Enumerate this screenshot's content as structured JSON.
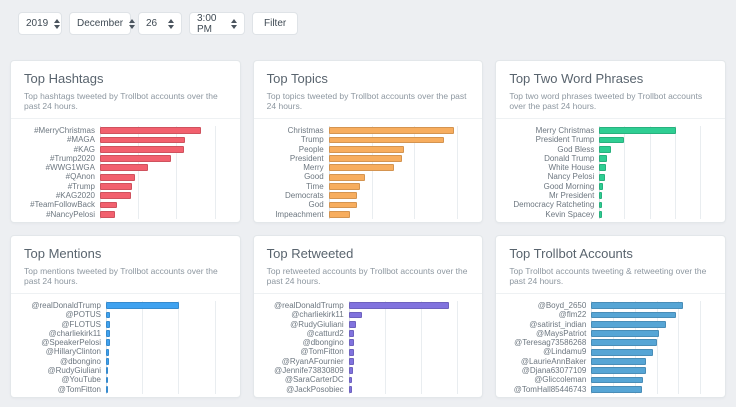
{
  "filter_bar": {
    "year": "2019",
    "month": "December",
    "day": "26",
    "time": "3:00 PM",
    "filter_label": "Filter"
  },
  "chart_data": [
    {
      "type": "bar",
      "title": "Top Hashtags",
      "subtitle": "Top hashtags tweeted by Trollbot accounts over the past 24 hours.",
      "orientation": "horizontal",
      "color": "#f2606e",
      "label_width": 76,
      "categories": [
        "#MerryChristmas",
        "#MAGA",
        "#KAG",
        "#Trump2020",
        "#WWG1WGA",
        "#QAnon",
        "#Trump",
        "#KAG2020",
        "#TeamFollowBack",
        "#NancyPelosi"
      ],
      "values": [
        530,
        445,
        440,
        370,
        250,
        185,
        165,
        160,
        90,
        80
      ],
      "xticks": [
        0,
        200,
        400,
        600
      ],
      "xlim": [
        0,
        600
      ],
      "grid": true
    },
    {
      "type": "bar",
      "title": "Top Topics",
      "subtitle": "Top topics tweeted by Trollbot accounts over the past 24 hours.",
      "orientation": "horizontal",
      "color": "#f7ad5e",
      "label_width": 62,
      "categories": [
        "Christmas",
        "Trump",
        "People",
        "President",
        "Merry",
        "Good",
        "Time",
        "Democrats",
        "God",
        "Impeachment"
      ],
      "values": [
        2920,
        2690,
        1760,
        1720,
        1520,
        855,
        735,
        660,
        650,
        495
      ],
      "xticks": [
        0,
        1000,
        2000,
        3000
      ],
      "xlim": [
        0,
        3000
      ],
      "grid": true
    },
    {
      "type": "bar",
      "title": "Top Two Word Phrases",
      "subtitle": "Top two word phrases tweeted by Trollbot accounts over the past 24 hours.",
      "orientation": "horizontal",
      "color": "#2fce93",
      "label_width": 90,
      "categories": [
        "Merry Christmas",
        "President Trump",
        "God Bless",
        "Donald Trump",
        "White House",
        "Nancy Pelosi",
        "Good Morning",
        "Mr President",
        "Democracy Ratcheting",
        "Kevin Spacey"
      ],
      "values": [
        1515,
        490,
        240,
        145,
        135,
        110,
        70,
        60,
        50,
        45
      ],
      "xticks": [
        0,
        500,
        1000,
        1500,
        2000
      ],
      "xlim": [
        0,
        2000
      ],
      "grid": true
    },
    {
      "type": "bar",
      "title": "Top Mentions",
      "subtitle": "Top mentions tweeted by Trollbot accounts over the past 24 hours.",
      "orientation": "horizontal",
      "color": "#3fa2f0",
      "label_width": 82,
      "categories": [
        "@realDonaldTrump",
        "@POTUS",
        "@FLOTUS",
        "@charliekirk11",
        "@SpeakerPelosi",
        "@HillaryClinton",
        "@dbongino",
        "@RudyGiuliani",
        "@YouTube",
        "@TomFitton"
      ],
      "values": [
        10050,
        560,
        540,
        520,
        500,
        380,
        350,
        330,
        300,
        220
      ],
      "xticks": [
        0,
        5000,
        10000,
        15000
      ],
      "xlim": [
        0,
        15000
      ],
      "grid": true
    },
    {
      "type": "bar",
      "title": "Top Retweeted",
      "subtitle": "Top retweeted accounts by Trollbot accounts over the past 24 hours.",
      "orientation": "horizontal",
      "color": "#8173de",
      "label_width": 82,
      "categories": [
        "@realDonaldTrump",
        "@charliekirk11",
        "@RudyGiuliani",
        "@catturd2",
        "@dbongino",
        "@TomFitton",
        "@RyanAFournier",
        "@Jennife73830809",
        "@SaraCarterDC",
        "@JackPosobiec"
      ],
      "values": [
        2780,
        360,
        200,
        155,
        150,
        150,
        140,
        110,
        100,
        95
      ],
      "xticks": [
        0,
        1000,
        2000,
        3000
      ],
      "xlim": [
        0,
        3000
      ],
      "grid": true
    },
    {
      "type": "bar",
      "title": "Top Trollbot Accounts",
      "subtitle": "Top Trollbot accounts tweeting & retweeting over the past 24 hours.",
      "orientation": "horizontal",
      "color": "#56a5d5",
      "label_width": 82,
      "categories": [
        "@Boyd_2650",
        "@flm22",
        "@satirist_indian",
        "@MaysPatriot",
        "@Teresag73586268",
        "@Lindamu9",
        "@LaurieAnnBaker",
        "@Djana63077109",
        "@Gliccoleman",
        "@TomHall85446743"
      ],
      "values": [
        8400,
        7800,
        6900,
        6200,
        6000,
        5700,
        5050,
        5050,
        4750,
        4650
      ],
      "xticks": [
        0,
        2000,
        4000,
        6000,
        8000,
        10000
      ],
      "xlim": [
        0,
        10000
      ],
      "grid": true
    }
  ]
}
